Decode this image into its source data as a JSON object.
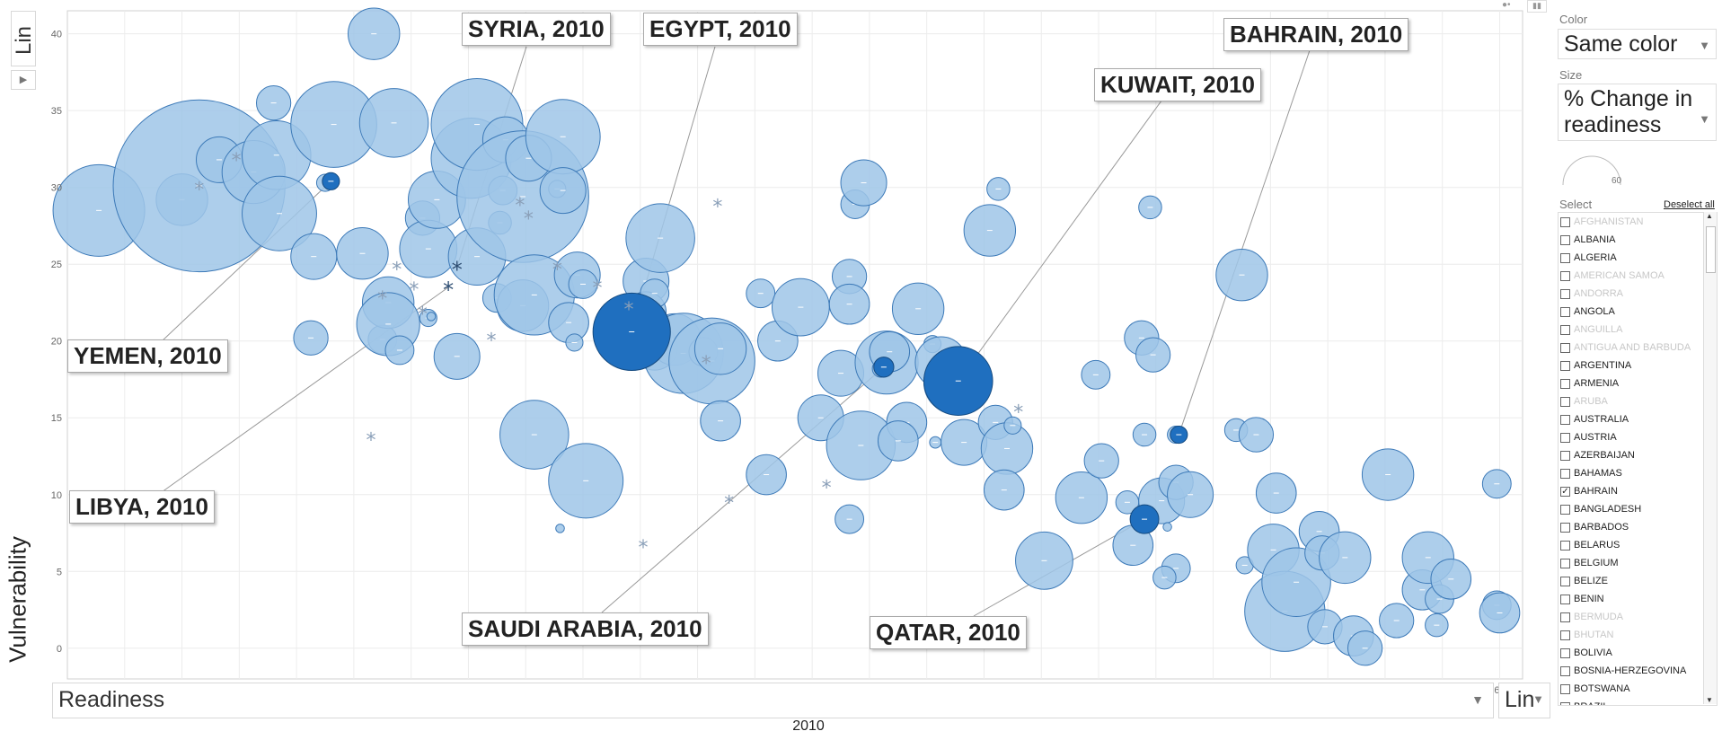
{
  "chart_data": {
    "type": "scatter",
    "title": "2010",
    "xlabel": "Readiness",
    "ylabel": "Vulnerability",
    "xlim": [
      10,
      60.8
    ],
    "ylim": [
      -2,
      41.5
    ],
    "xticks": [
      12,
      14,
      16,
      18,
      20,
      22,
      24,
      26,
      28,
      30,
      32,
      34,
      36,
      38,
      40,
      42,
      44,
      46,
      48,
      50,
      52,
      54,
      56,
      58,
      60
    ],
    "yticks": [
      0,
      5,
      10,
      15,
      20,
      25,
      30,
      35,
      40
    ],
    "grid": true,
    "size_by": "% Change in readiness",
    "points": [
      [
        11.1,
        28.5,
        1.6
      ],
      [
        14.0,
        29.2,
        0.9
      ],
      [
        14.6,
        30.1,
        3.0
      ],
      [
        15.3,
        31.8,
        0.8
      ],
      [
        16.5,
        31.0,
        1.1
      ],
      [
        17.2,
        35.5,
        0.6
      ],
      [
        17.3,
        32.1,
        1.2
      ],
      [
        17.4,
        28.3,
        1.3
      ],
      [
        18.6,
        25.5,
        0.8
      ],
      [
        18.5,
        20.2,
        0.6
      ],
      [
        19.3,
        34.1,
        1.5
      ],
      [
        19.0,
        30.3,
        0.3
      ],
      [
        20.3,
        25.7,
        0.9
      ],
      [
        20.7,
        40.0,
        0.9
      ],
      [
        21.0,
        20.1,
        0.5
      ],
      [
        21.4,
        34.2,
        1.2
      ],
      [
        21.2,
        22.5,
        0.9
      ],
      [
        21.2,
        21.1,
        1.1
      ],
      [
        21.6,
        19.4,
        0.5
      ],
      [
        22.4,
        28.0,
        0.6
      ],
      [
        22.6,
        26.0,
        1.0
      ],
      [
        22.6,
        21.5,
        0.3
      ],
      [
        22.9,
        29.2,
        1.0
      ],
      [
        23.6,
        19.0,
        0.8
      ],
      [
        24.1,
        31.9,
        1.4
      ],
      [
        24.3,
        34.1,
        1.6
      ],
      [
        24.3,
        25.5,
        1.0
      ],
      [
        25.0,
        22.8,
        0.5
      ],
      [
        25.2,
        29.8,
        0.5
      ],
      [
        25.1,
        27.7,
        0.4
      ],
      [
        25.3,
        33.1,
        0.8
      ],
      [
        25.9,
        29.4,
        2.3
      ],
      [
        26.1,
        31.9,
        0.8
      ],
      [
        25.9,
        22.3,
        0.9
      ],
      [
        26.3,
        23.0,
        1.4
      ],
      [
        27.1,
        29.9,
        0.3
      ],
      [
        27.3,
        33.3,
        1.3
      ],
      [
        27.3,
        29.8,
        0.8
      ],
      [
        26.3,
        13.9,
        1.2
      ],
      [
        27.5,
        21.2,
        0.7
      ],
      [
        27.7,
        19.9,
        0.3
      ],
      [
        27.8,
        24.3,
        0.8
      ],
      [
        28.0,
        23.7,
        0.5
      ],
      [
        28.1,
        10.9,
        1.3
      ],
      [
        29.7,
        20.7,
        1.0
      ],
      [
        30.2,
        23.9,
        0.8
      ],
      [
        30.2,
        21.9,
        0.7
      ],
      [
        30.4,
        21.5,
        0.5
      ],
      [
        30.7,
        26.7,
        1.2
      ],
      [
        30.5,
        23.1,
        0.5
      ],
      [
        30.5,
        19.6,
        0.8
      ],
      [
        31.2,
        20.1,
        0.9
      ],
      [
        31.5,
        19.2,
        1.4
      ],
      [
        32.2,
        19.3,
        0.5
      ],
      [
        32.5,
        18.7,
        1.5
      ],
      [
        32.8,
        19.5,
        0.9
      ],
      [
        32.8,
        14.8,
        0.7
      ],
      [
        34.2,
        23.1,
        0.5
      ],
      [
        34.4,
        11.3,
        0.7
      ],
      [
        34.8,
        20.0,
        0.7
      ],
      [
        35.6,
        22.2,
        1.0
      ],
      [
        36.3,
        15.0,
        0.8
      ],
      [
        37.0,
        17.9,
        0.8
      ],
      [
        37.3,
        24.2,
        0.6
      ],
      [
        37.3,
        22.4,
        0.7
      ],
      [
        37.5,
        28.9,
        0.5
      ],
      [
        37.8,
        30.3,
        0.8
      ],
      [
        37.3,
        8.4,
        0.5
      ],
      [
        37.7,
        13.2,
        1.2
      ],
      [
        38.6,
        18.6,
        1.1
      ],
      [
        38.4,
        18.2,
        0.3
      ],
      [
        38.7,
        19.3,
        0.7
      ],
      [
        39.3,
        14.7,
        0.7
      ],
      [
        39.0,
        13.5,
        0.7
      ],
      [
        39.7,
        22.1,
        0.9
      ],
      [
        40.2,
        19.8,
        0.3
      ],
      [
        40.3,
        13.4,
        0.2
      ],
      [
        40.5,
        18.6,
        0.9
      ],
      [
        41.0,
        17.3,
        1.1
      ],
      [
        41.3,
        13.4,
        0.8
      ],
      [
        42.2,
        27.2,
        0.9
      ],
      [
        42.5,
        29.9,
        0.4
      ],
      [
        42.4,
        14.7,
        0.6
      ],
      [
        42.8,
        13.0,
        0.9
      ],
      [
        43.0,
        14.5,
        0.3
      ],
      [
        42.7,
        10.3,
        0.7
      ],
      [
        44.1,
        5.7,
        1.0
      ],
      [
        45.4,
        9.8,
        0.9
      ],
      [
        45.9,
        17.8,
        0.5
      ],
      [
        46.1,
        12.2,
        0.6
      ],
      [
        47.0,
        9.5,
        0.4
      ],
      [
        47.2,
        6.7,
        0.7
      ],
      [
        47.5,
        20.2,
        0.6
      ],
      [
        47.6,
        13.9,
        0.4
      ],
      [
        47.8,
        28.7,
        0.4
      ],
      [
        47.9,
        19.1,
        0.6
      ],
      [
        48.2,
        9.6,
        0.8
      ],
      [
        48.7,
        10.8,
        0.6
      ],
      [
        48.7,
        5.2,
        0.5
      ],
      [
        48.3,
        4.6,
        0.4
      ],
      [
        48.7,
        13.9,
        0.3
      ],
      [
        49.2,
        10.0,
        0.8
      ],
      [
        47.6,
        8.4,
        0.4
      ],
      [
        50.8,
        14.2,
        0.4
      ],
      [
        51.1,
        5.4,
        0.3
      ],
      [
        51.0,
        24.3,
        0.9
      ],
      [
        51.5,
        13.9,
        0.6
      ],
      [
        52.2,
        10.1,
        0.7
      ],
      [
        52.1,
        6.4,
        0.9
      ],
      [
        52.5,
        2.4,
        1.4
      ],
      [
        52.9,
        4.3,
        1.2
      ],
      [
        53.7,
        7.6,
        0.7
      ],
      [
        53.8,
        6.2,
        0.6
      ],
      [
        54.6,
        5.9,
        0.9
      ],
      [
        53.9,
        1.4,
        0.6
      ],
      [
        54.9,
        0.8,
        0.7
      ],
      [
        55.3,
        0.0,
        0.6
      ],
      [
        56.1,
        11.3,
        0.9
      ],
      [
        56.4,
        1.8,
        0.6
      ],
      [
        57.3,
        3.8,
        0.7
      ],
      [
        57.5,
        5.9,
        0.9
      ],
      [
        57.9,
        3.2,
        0.5
      ],
      [
        58.3,
        4.5,
        0.7
      ],
      [
        57.8,
        1.5,
        0.4
      ],
      [
        59.9,
        10.7,
        0.5
      ],
      [
        59.9,
        2.8,
        0.5
      ],
      [
        60.0,
        2.3,
        0.7
      ],
      [
        27.2,
        7.8,
        0.15
      ],
      [
        48.4,
        7.9,
        0.15
      ],
      [
        22.7,
        21.6,
        0.15
      ]
    ],
    "asterisks": [
      [
        14.6,
        30.0
      ],
      [
        15.9,
        31.9
      ],
      [
        21.5,
        24.8
      ],
      [
        22.1,
        23.5
      ],
      [
        21.0,
        22.9
      ],
      [
        22.4,
        21.9
      ],
      [
        24.8,
        20.2
      ],
      [
        20.6,
        13.7
      ],
      [
        25.8,
        29.0
      ],
      [
        26.1,
        28.1
      ],
      [
        27.1,
        24.8
      ],
      [
        28.5,
        23.6
      ],
      [
        29.6,
        22.2
      ],
      [
        30.1,
        6.7
      ],
      [
        32.7,
        28.9
      ],
      [
        33.1,
        9.6
      ],
      [
        36.5,
        10.6
      ],
      [
        43.2,
        15.5
      ],
      [
        32.3,
        18.7
      ]
    ],
    "highlighted": [
      {
        "label": "SYRIA, 2010",
        "x": 23.6,
        "y": 24.8,
        "marker": "asterisk"
      },
      {
        "label": "EGYPT, 2010",
        "x": 29.7,
        "y": 20.6,
        "r": 1.35
      },
      {
        "label": "BAHRAIN, 2010",
        "x": 48.8,
        "y": 13.9,
        "r": 0.3
      },
      {
        "label": "KUWAIT, 2010",
        "x": 41.1,
        "y": 17.4,
        "r": 1.2
      },
      {
        "label": "YEMEN, 2010",
        "x": 19.2,
        "y": 30.4,
        "r": 0.3
      },
      {
        "label": "LIBYA, 2010",
        "x": 23.3,
        "y": 23.5,
        "marker": "asterisk"
      },
      {
        "label": "SAUDI ARABIA, 2010",
        "x": 38.5,
        "y": 18.3,
        "r": 0.35
      },
      {
        "label": "QATAR, 2010",
        "x": 47.6,
        "y": 8.4,
        "r": 0.5
      }
    ]
  },
  "axes": {
    "y_scale_label": "Lin",
    "x_scale_label": "Lin",
    "x_variable": "Readiness",
    "y_variable": "Vulnerability",
    "year": "2010"
  },
  "sidebar": {
    "color_label": "Color",
    "color_value": "Same color",
    "size_label": "Size",
    "size_value_line1": "% Change in",
    "size_value_line2": "readiness",
    "size_legend_value": "60",
    "select_label": "Select",
    "deselect_all": "Deselect all",
    "countries": [
      {
        "name": "AFGHANISTAN",
        "dim": true,
        "checked": false
      },
      {
        "name": "ALBANIA",
        "dim": false,
        "checked": false
      },
      {
        "name": "ALGERIA",
        "dim": false,
        "checked": false
      },
      {
        "name": "AMERICAN SAMOA",
        "dim": true,
        "checked": false
      },
      {
        "name": "ANDORRA",
        "dim": true,
        "checked": false
      },
      {
        "name": "ANGOLA",
        "dim": false,
        "checked": false
      },
      {
        "name": "ANGUILLA",
        "dim": true,
        "checked": false
      },
      {
        "name": "ANTIGUA AND BARBUDA",
        "dim": true,
        "checked": false
      },
      {
        "name": "ARGENTINA",
        "dim": false,
        "checked": false
      },
      {
        "name": "ARMENIA",
        "dim": false,
        "checked": false
      },
      {
        "name": "ARUBA",
        "dim": true,
        "checked": false
      },
      {
        "name": "AUSTRALIA",
        "dim": false,
        "checked": false
      },
      {
        "name": "AUSTRIA",
        "dim": false,
        "checked": false
      },
      {
        "name": "AZERBAIJAN",
        "dim": false,
        "checked": false
      },
      {
        "name": "BAHAMAS",
        "dim": false,
        "checked": false
      },
      {
        "name": "BAHRAIN",
        "dim": false,
        "checked": true
      },
      {
        "name": "BANGLADESH",
        "dim": false,
        "checked": false
      },
      {
        "name": "BARBADOS",
        "dim": false,
        "checked": false
      },
      {
        "name": "BELARUS",
        "dim": false,
        "checked": false
      },
      {
        "name": "BELGIUM",
        "dim": false,
        "checked": false
      },
      {
        "name": "BELIZE",
        "dim": false,
        "checked": false
      },
      {
        "name": "BENIN",
        "dim": false,
        "checked": false
      },
      {
        "name": "BERMUDA",
        "dim": true,
        "checked": false
      },
      {
        "name": "BHUTAN",
        "dim": true,
        "checked": false
      },
      {
        "name": "BOLIVIA",
        "dim": false,
        "checked": false
      },
      {
        "name": "BOSNIA-HERZEGOVINA",
        "dim": false,
        "checked": false
      },
      {
        "name": "BOTSWANA",
        "dim": false,
        "checked": false
      },
      {
        "name": "BRAZIL",
        "dim": false,
        "checked": false
      }
    ]
  },
  "colors": {
    "bubble_fill": "#9fc5e8",
    "bubble_stroke": "#3d7ab8",
    "highlight_fill": "#1f6fbf",
    "asterisk": "#8a9fb8",
    "grid": "#ececec"
  }
}
